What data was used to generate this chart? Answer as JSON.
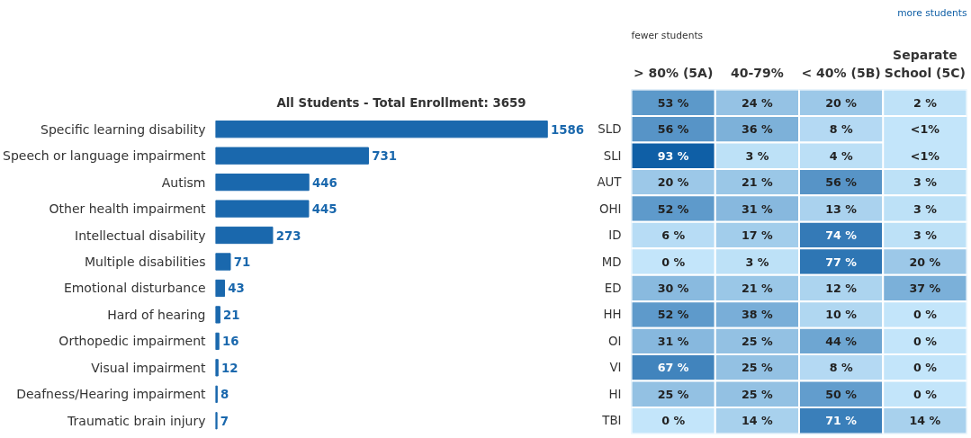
{
  "chart_data": [
    {
      "type": "bar",
      "orientation": "horizontal",
      "title": "All Students - Total Enrollment: 3659",
      "data_labels": true,
      "color": "#1a68ad",
      "categories": [
        "Specific learning disability",
        "Speech or language impairment",
        "Autism",
        "Other health impairment",
        "Intellectual disability",
        "Multiple disabilities",
        "Emotional disturbance",
        "Hard of hearing",
        "Orthopedic impairment",
        "Visual impairment",
        "Deafness/Hearing impairment",
        "Traumatic brain injury"
      ],
      "values": [
        1586,
        731,
        446,
        445,
        273,
        71,
        43,
        21,
        16,
        12,
        8,
        7
      ]
    },
    {
      "type": "heatmap",
      "annotations": [
        "fewer students",
        "more students"
      ],
      "categories": [
        "> 80% (5A)",
        "40-79%",
        "< 40% (5B)",
        "Separate School (5C)"
      ],
      "y_categories": [
        null,
        "SLD",
        "SLI",
        "AUT",
        "OHI",
        "ID",
        "MD",
        "ED",
        "HH",
        "OI",
        "VI",
        "HI",
        "TBI"
      ],
      "cells": [
        [
          53,
          24,
          20,
          2
        ],
        [
          56,
          36,
          8,
          null
        ],
        [
          93,
          3,
          4,
          null
        ],
        [
          20,
          21,
          56,
          3
        ],
        [
          52,
          31,
          13,
          3
        ],
        [
          6,
          17,
          74,
          3
        ],
        [
          0,
          3,
          77,
          20
        ],
        [
          30,
          21,
          12,
          37
        ],
        [
          52,
          38,
          10,
          0
        ],
        [
          31,
          25,
          44,
          0
        ],
        [
          67,
          25,
          8,
          0
        ],
        [
          25,
          25,
          50,
          0
        ],
        [
          0,
          14,
          71,
          14
        ]
      ],
      "cell_labels": [
        [
          "53 %",
          "24 %",
          "20 %",
          "2 %"
        ],
        [
          "56 %",
          "36 %",
          "8 %",
          "<1%"
        ],
        [
          "93 %",
          "3 %",
          "4 %",
          "<1%"
        ],
        [
          "20 %",
          "21 %",
          "56 %",
          "3 %"
        ],
        [
          "52 %",
          "31 %",
          "13 %",
          "3 %"
        ],
        [
          "6 %",
          "17 %",
          "74 %",
          "3 %"
        ],
        [
          "0 %",
          "3 %",
          "77 %",
          "20 %"
        ],
        [
          "30 %",
          "21 %",
          "12 %",
          "37 %"
        ],
        [
          "52 %",
          "38 %",
          "10 %",
          "0 %"
        ],
        [
          "31 %",
          "25 %",
          "44 %",
          "0 %"
        ],
        [
          "67 %",
          "25 %",
          "8 %",
          "0 %"
        ],
        [
          "25 %",
          "25 %",
          "50 %",
          "0 %"
        ],
        [
          "0 %",
          "14 %",
          "71 %",
          "14 %"
        ]
      ]
    }
  ]
}
